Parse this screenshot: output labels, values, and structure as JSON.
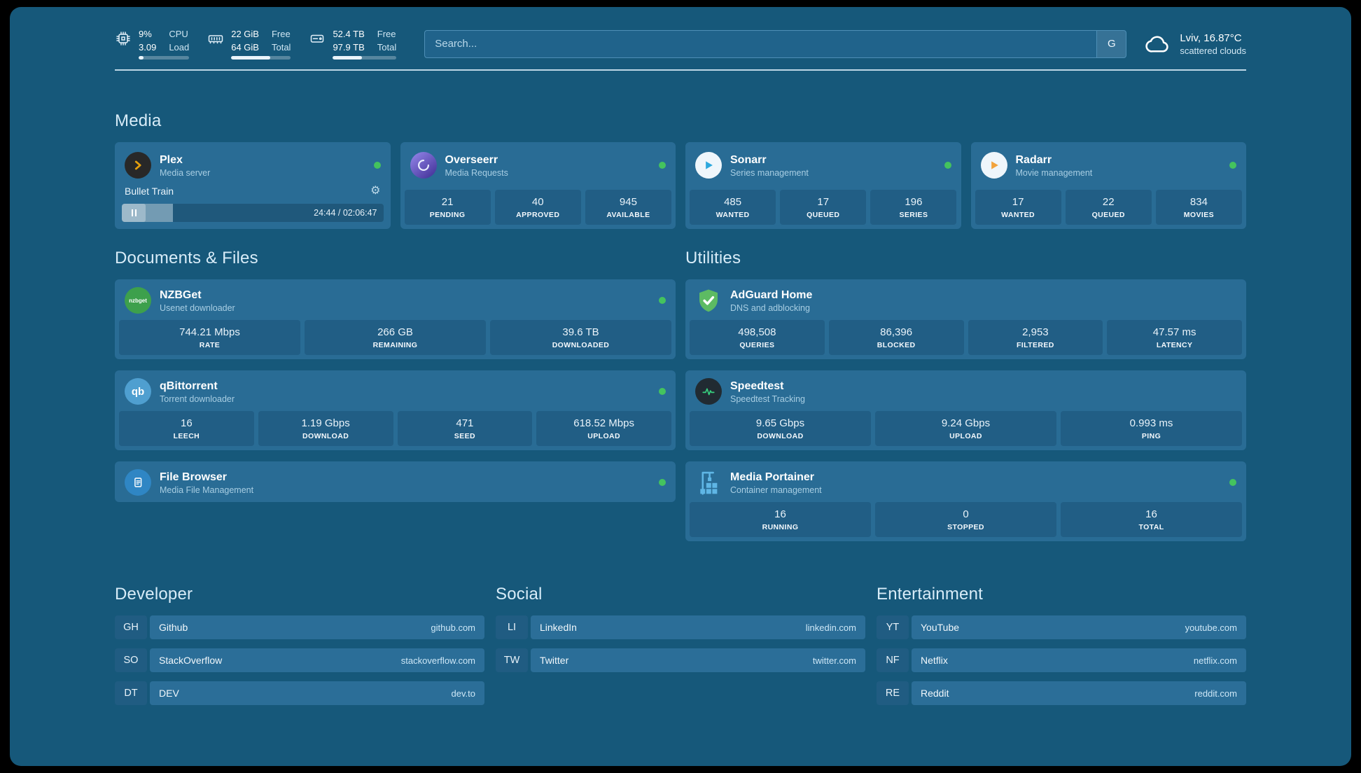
{
  "colors": {
    "bg": "#16587A",
    "card": "#296C95",
    "stat": "#215E85",
    "row": "#2B6E98",
    "abbr": "#205C82",
    "search": "#20638B",
    "border": "#4E8FB6",
    "title": "#D8ECF8",
    "sub": "#A8CEE3",
    "dot": "#44C35E",
    "plex-accent": "#E5A00D",
    "sonarr-accent": "#2DA8DD",
    "radarr-accent": "#F2A33C",
    "nzbget-accent": "#3DA04C",
    "qbittorrent-accent": "#4F9FD0",
    "adguard-accent": "#5DBB63",
    "speedtest-accent": "#37D07F",
    "portainer-accent": "#5FB6E5"
  },
  "topbar": {
    "cpu": {
      "value_top": "9%",
      "label_top": "CPU",
      "value_bottom": "3.09",
      "label_bottom": "Load",
      "progress_pct": 9
    },
    "memory": {
      "value_top": "22 GiB",
      "label_top": "Free",
      "value_bottom": "64 GiB",
      "label_bottom": "Total",
      "progress_pct": 66
    },
    "storage": {
      "value_top": "52.4 TB",
      "label_top": "Free",
      "value_bottom": "97.9 TB",
      "label_bottom": "Total",
      "progress_pct": 46
    },
    "search": {
      "placeholder": "Search...",
      "engine_label": "G"
    },
    "weather": {
      "location_temp": "Lviv, 16.87°C",
      "condition": "scattered clouds"
    }
  },
  "sections": {
    "media": {
      "title": "Media"
    },
    "documents": {
      "title": "Documents & Files"
    },
    "utilities": {
      "title": "Utilities"
    },
    "developer": {
      "title": "Developer"
    },
    "social": {
      "title": "Social"
    },
    "entertainment": {
      "title": "Entertainment"
    }
  },
  "apps": {
    "plex": {
      "name": "Plex",
      "subtitle": "Media server",
      "now_playing": "Bullet Train",
      "elapsed_total": "24:44 / 02:06:47",
      "progress_pct": 19.5
    },
    "overseerr": {
      "name": "Overseerr",
      "subtitle": "Media Requests",
      "stats": [
        {
          "value": "21",
          "label": "PENDING"
        },
        {
          "value": "40",
          "label": "APPROVED"
        },
        {
          "value": "945",
          "label": "AVAILABLE"
        }
      ]
    },
    "sonarr": {
      "name": "Sonarr",
      "subtitle": "Series management",
      "stats": [
        {
          "value": "485",
          "label": "WANTED"
        },
        {
          "value": "17",
          "label": "QUEUED"
        },
        {
          "value": "196",
          "label": "SERIES"
        }
      ]
    },
    "radarr": {
      "name": "Radarr",
      "subtitle": "Movie management",
      "stats": [
        {
          "value": "17",
          "label": "WANTED"
        },
        {
          "value": "22",
          "label": "QUEUED"
        },
        {
          "value": "834",
          "label": "MOVIES"
        }
      ]
    },
    "nzbget": {
      "name": "NZBGet",
      "subtitle": "Usenet downloader",
      "icon_text": "nzbget",
      "stats": [
        {
          "value": "744.21 Mbps",
          "label": "RATE"
        },
        {
          "value": "266 GB",
          "label": "REMAINING"
        },
        {
          "value": "39.6 TB",
          "label": "DOWNLOADED"
        }
      ]
    },
    "qbittorrent": {
      "name": "qBittorrent",
      "subtitle": "Torrent downloader",
      "icon_text": "qb",
      "stats": [
        {
          "value": "16",
          "label": "LEECH"
        },
        {
          "value": "1.19 Gbps",
          "label": "DOWNLOAD"
        },
        {
          "value": "471",
          "label": "SEED"
        },
        {
          "value": "618.52 Mbps",
          "label": "UPLOAD"
        }
      ]
    },
    "filebrowser": {
      "name": "File Browser",
      "subtitle": "Media File Management"
    },
    "adguard": {
      "name": "AdGuard Home",
      "subtitle": "DNS and adblocking",
      "stats": [
        {
          "value": "498,508",
          "label": "QUERIES"
        },
        {
          "value": "86,396",
          "label": "BLOCKED"
        },
        {
          "value": "2,953",
          "label": "FILTERED"
        },
        {
          "value": "47.57 ms",
          "label": "LATENCY"
        }
      ]
    },
    "speedtest": {
      "name": "Speedtest",
      "subtitle": "Speedtest Tracking",
      "stats": [
        {
          "value": "9.65 Gbps",
          "label": "DOWNLOAD"
        },
        {
          "value": "9.24 Gbps",
          "label": "UPLOAD"
        },
        {
          "value": "0.993 ms",
          "label": "PING"
        }
      ]
    },
    "portainer": {
      "name": "Media Portainer",
      "subtitle": "Container management",
      "stats": [
        {
          "value": "16",
          "label": "RUNNING"
        },
        {
          "value": "0",
          "label": "STOPPED"
        },
        {
          "value": "16",
          "label": "TOTAL"
        }
      ]
    }
  },
  "bookmarks": {
    "developer": [
      {
        "abbr": "GH",
        "name": "Github",
        "domain": "github.com"
      },
      {
        "abbr": "SO",
        "name": "StackOverflow",
        "domain": "stackoverflow.com"
      },
      {
        "abbr": "DT",
        "name": "DEV",
        "domain": "dev.to"
      }
    ],
    "social": [
      {
        "abbr": "LI",
        "name": "LinkedIn",
        "domain": "linkedin.com"
      },
      {
        "abbr": "TW",
        "name": "Twitter",
        "domain": "twitter.com"
      }
    ],
    "entertainment": [
      {
        "abbr": "YT",
        "name": "YouTube",
        "domain": "youtube.com"
      },
      {
        "abbr": "NF",
        "name": "Netflix",
        "domain": "netflix.com"
      },
      {
        "abbr": "RE",
        "name": "Reddit",
        "domain": "reddit.com"
      }
    ]
  }
}
